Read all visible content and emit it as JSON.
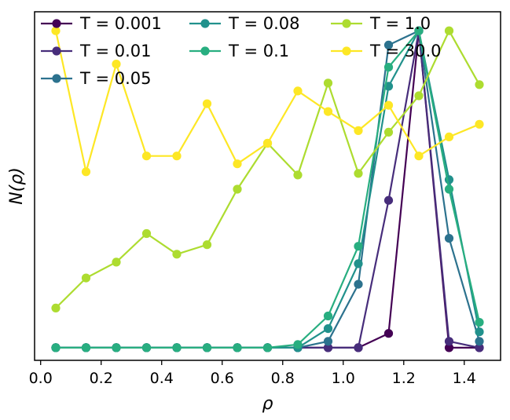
{
  "chart_data": {
    "type": "line",
    "title": "",
    "xlabel": "ρ",
    "ylabel": "N(ρ)",
    "xlim": [
      -0.02,
      1.52
    ],
    "ylim": [
      -0.04,
      1.06
    ],
    "xticks": [
      0.0,
      0.2,
      0.4,
      0.6,
      0.8,
      1.0,
      1.2,
      1.4
    ],
    "xtick_labels": [
      "0.0",
      "0.2",
      "0.4",
      "0.6",
      "0.8",
      "1.0",
      "1.2",
      "1.4"
    ],
    "yticks_visible": false,
    "grid": false,
    "legend_location": "top-left",
    "legend_columns": 3,
    "x": [
      0.05,
      0.15,
      0.25,
      0.35,
      0.45,
      0.55,
      0.65,
      0.75,
      0.85,
      0.95,
      1.05,
      1.15,
      1.25,
      1.35,
      1.45
    ],
    "series": [
      {
        "name": "T = 0.001",
        "color": "#440154",
        "values": [
          0,
          0,
          0,
          0,
          0,
          0,
          0,
          0,
          0,
          0,
          0,
          0.045,
          1.0,
          0.0,
          0.0
        ]
      },
      {
        "name": "T = 0.01",
        "color": "#472d7b",
        "values": [
          0,
          0,
          0,
          0,
          0,
          0,
          0,
          0,
          0,
          0,
          0,
          0.465,
          1.0,
          0.02,
          0.0
        ]
      },
      {
        "name": "T = 0.05",
        "color": "#2c728e",
        "values": [
          0,
          0,
          0,
          0,
          0,
          0,
          0,
          0,
          0,
          0.02,
          0.2,
          0.955,
          1.0,
          0.345,
          0.02
        ]
      },
      {
        "name": "T = 0.08",
        "color": "#21918c",
        "values": [
          0,
          0,
          0,
          0,
          0,
          0,
          0,
          0,
          0,
          0.06,
          0.265,
          0.825,
          1.0,
          0.53,
          0.05
        ]
      },
      {
        "name": "T = 0.1",
        "color": "#28ae80",
        "values": [
          0,
          0,
          0,
          0,
          0,
          0,
          0,
          0,
          0.01,
          0.1,
          0.32,
          0.885,
          1.0,
          0.5,
          0.08
        ]
      },
      {
        "name": "T = 1.0",
        "color": "#addc30",
        "values": [
          0.125,
          0.22,
          0.27,
          0.36,
          0.295,
          0.325,
          0.5,
          0.645,
          0.545,
          0.835,
          0.55,
          0.68,
          0.795,
          1.0,
          0.83
        ]
      },
      {
        "name": "T = 30.0",
        "color": "#fde725",
        "values": [
          1.0,
          0.555,
          0.895,
          0.605,
          0.605,
          0.77,
          0.58,
          0.645,
          0.81,
          0.745,
          0.685,
          0.765,
          0.605,
          0.665,
          0.705
        ]
      }
    ]
  }
}
